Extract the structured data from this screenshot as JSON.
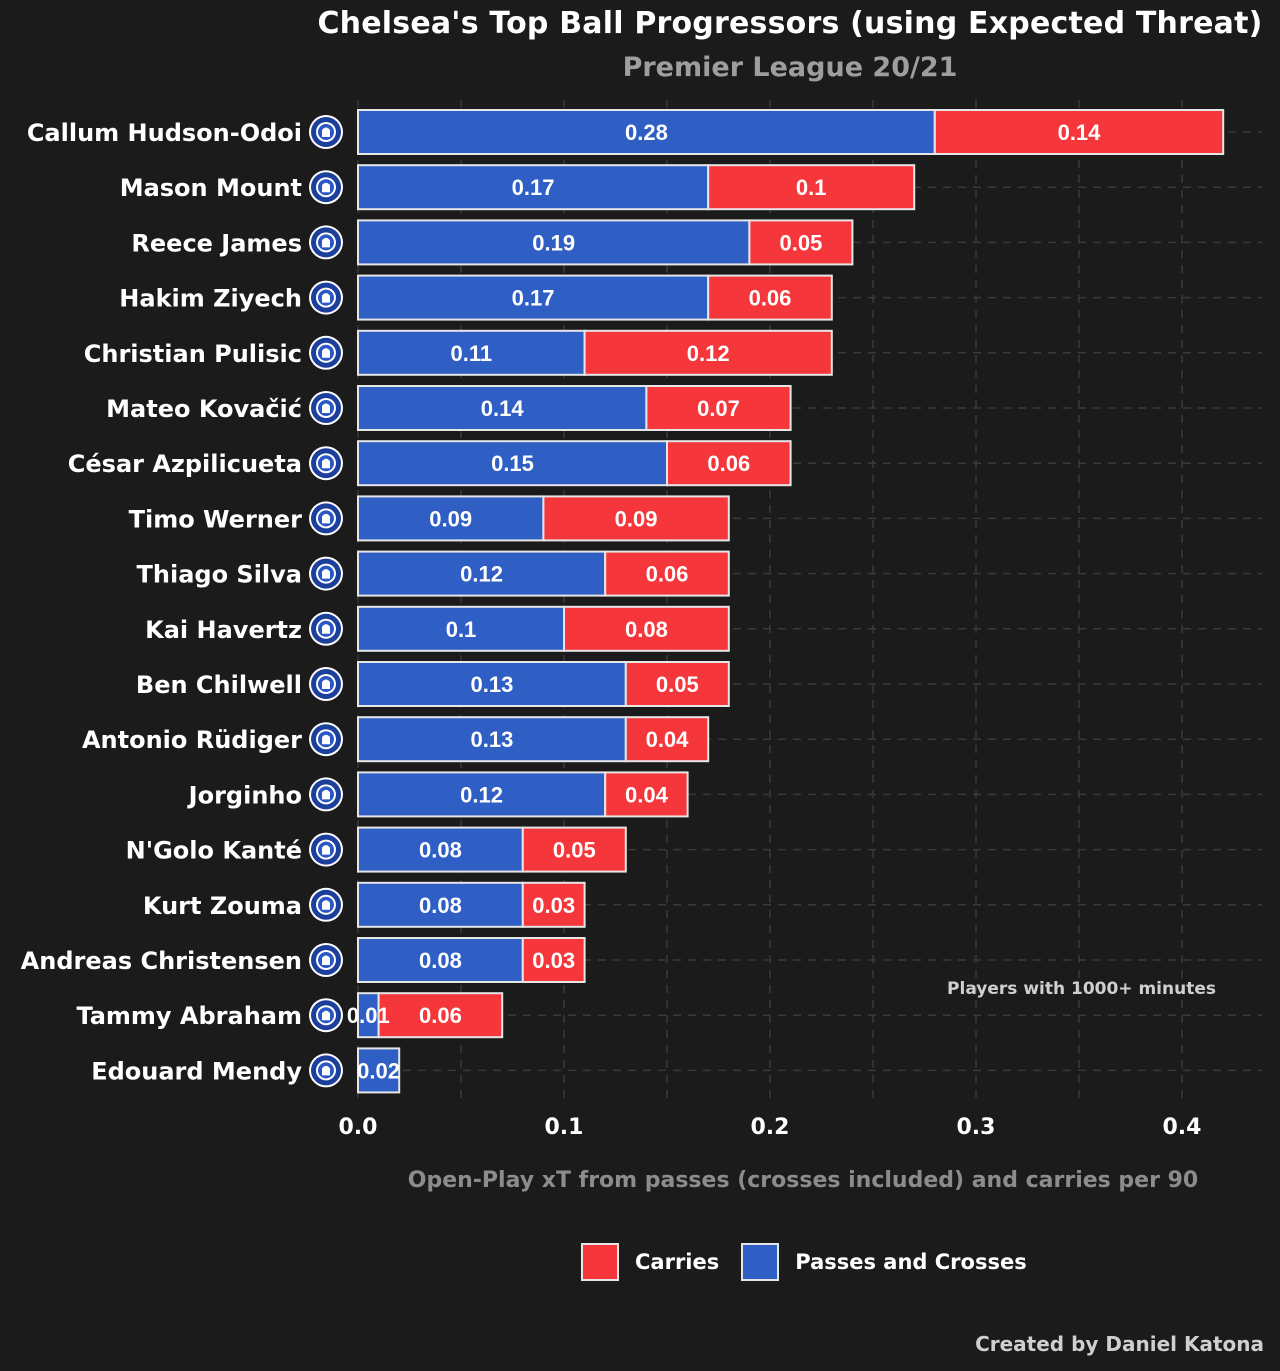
{
  "title": "Chelsea's Top Ball Progressors (using Expected Threat)",
  "subtitle": "Premier League 20/21",
  "credit": "Created by Daniel Katona",
  "annotation": "Players with 1000+ minutes",
  "colors": {
    "background": "#1b1b1b",
    "passes": "#2f5fc4",
    "carries": "#f5363a",
    "bar_border": "#e6e6e6",
    "grid": "#3a3a3a"
  },
  "legend": {
    "carries": "Carries",
    "passes": "Passes and Crosses"
  },
  "chart_data": {
    "type": "bar",
    "orientation": "horizontal",
    "stacked": true,
    "title": "Chelsea's Top Ball Progressors (using Expected Threat)",
    "subtitle": "Premier League 20/21",
    "xlabel": "Open-Play xT from passes (crosses included) and carries per 90",
    "ylabel": "",
    "xlim": [
      0,
      0.42
    ],
    "xticks": [
      0.0,
      0.1,
      0.2,
      0.3,
      0.4
    ],
    "xtick_labels": [
      "0.0",
      "0.1",
      "0.2",
      "0.3",
      "0.4"
    ],
    "grid": true,
    "legend_position": "bottom",
    "categories": [
      "Callum Hudson-Odoi",
      "Mason Mount",
      "Reece James",
      "Hakim Ziyech",
      "Christian Pulisic",
      "Mateo Kovačić",
      "César Azpilicueta",
      "Timo Werner",
      "Thiago Silva",
      "Kai Havertz",
      "Ben Chilwell",
      "Antonio Rüdiger",
      "Jorginho",
      "N'Golo Kanté",
      "Kurt Zouma",
      "Andreas Christensen",
      "Tammy Abraham",
      "Edouard Mendy"
    ],
    "series": [
      {
        "name": "Passes and Crosses",
        "values": [
          0.28,
          0.17,
          0.19,
          0.17,
          0.11,
          0.14,
          0.15,
          0.09,
          0.12,
          0.1,
          0.13,
          0.13,
          0.12,
          0.08,
          0.08,
          0.08,
          0.01,
          0.02
        ],
        "labels": [
          "0.28",
          "0.17",
          "0.19",
          "0.17",
          "0.11",
          "0.14",
          "0.15",
          "0.09",
          "0.12",
          "0.1",
          "0.13",
          "0.13",
          "0.12",
          "0.08",
          "0.08",
          "0.08",
          "0.01",
          "0.02"
        ]
      },
      {
        "name": "Carries",
        "values": [
          0.14,
          0.1,
          0.05,
          0.06,
          0.12,
          0.07,
          0.06,
          0.09,
          0.06,
          0.08,
          0.05,
          0.04,
          0.04,
          0.05,
          0.03,
          0.03,
          0.06,
          0.0
        ],
        "labels": [
          "0.14",
          "0.1",
          "0.05",
          "0.06",
          "0.12",
          "0.07",
          "0.06",
          "0.09",
          "0.06",
          "0.08",
          "0.05",
          "0.04",
          "0.04",
          "0.05",
          "0.03",
          "0.03",
          "0.06",
          ""
        ]
      }
    ]
  }
}
